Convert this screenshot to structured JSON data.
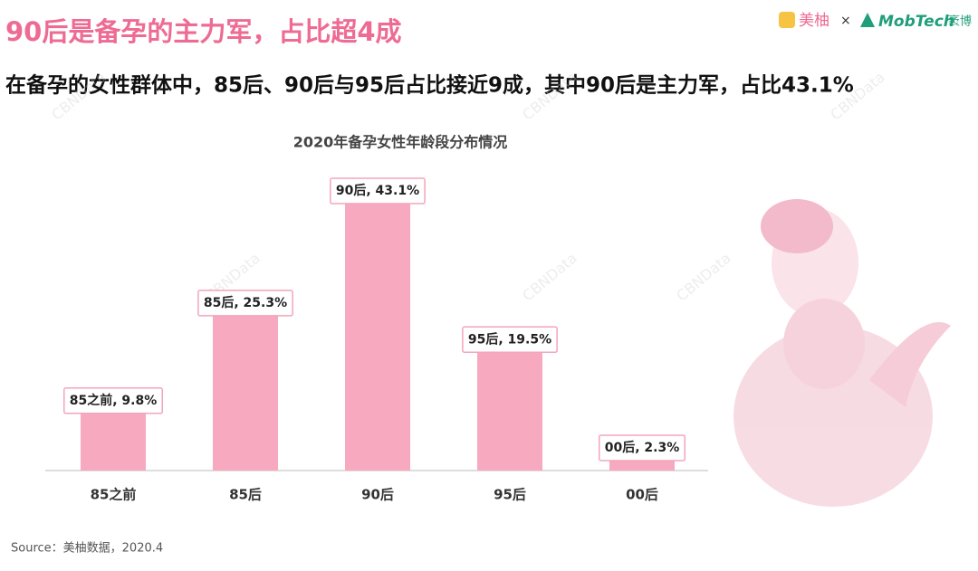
{
  "header": {
    "title": "90后是备孕的主力军，占比超4成",
    "subtitle": "在备孕的女性群体中，85后、90后与95后占比接近9成，其中90后是主力军，占比43.1%",
    "logo_left": "美柚",
    "logo_sep": "×",
    "logo_right": "MobTech",
    "logo_right_cn": "袤博"
  },
  "watermark": "CBNData",
  "chart_data": {
    "type": "bar",
    "title": "2020年备孕女性年龄段分布情况",
    "categories": [
      "85之前",
      "85后",
      "90后",
      "95后",
      "00后"
    ],
    "values": [
      9.8,
      25.3,
      43.1,
      19.5,
      2.3
    ],
    "value_labels": [
      "85之前, 9.8%",
      "85后, 25.3%",
      "90后, 43.1%",
      "95后, 19.5%",
      "00后, 2.3%"
    ],
    "color": "#f7a9c0"
  },
  "footer": {
    "source": "Source：美柚数据，2020.4"
  }
}
